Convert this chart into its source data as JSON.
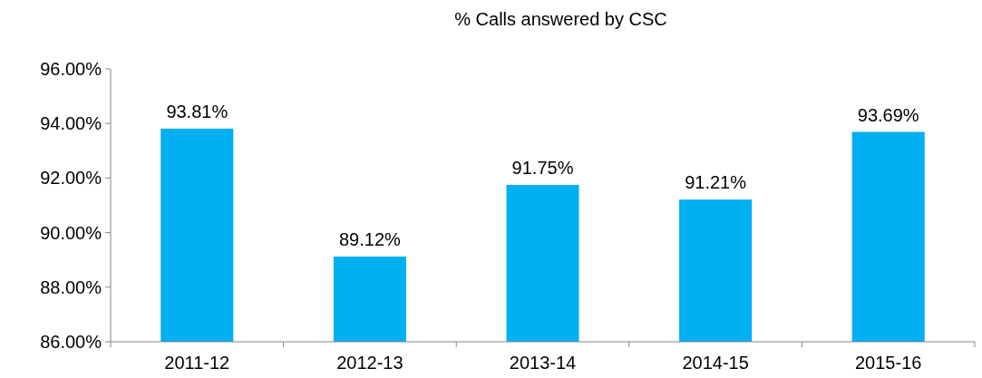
{
  "chart_data": {
    "type": "bar",
    "title": "% Calls answered by CSC",
    "categories": [
      "2011-12",
      "2012-13",
      "2013-14",
      "2014-15",
      "2015-16"
    ],
    "values": [
      93.81,
      89.12,
      91.75,
      91.21,
      93.69
    ],
    "value_labels": [
      "93.81%",
      "89.12%",
      "91.75%",
      "91.21%",
      "93.69%"
    ],
    "color": "#00b0f0",
    "ylim": [
      86,
      96
    ],
    "yticks": [
      {
        "value": 86,
        "label": "86.00%"
      },
      {
        "value": 88,
        "label": "88.00%"
      },
      {
        "value": 90,
        "label": "90.00%"
      },
      {
        "value": 92,
        "label": "92.00%"
      },
      {
        "value": 94,
        "label": "94.00%"
      },
      {
        "value": 96,
        "label": "96.00%"
      }
    ],
    "grid": false
  }
}
